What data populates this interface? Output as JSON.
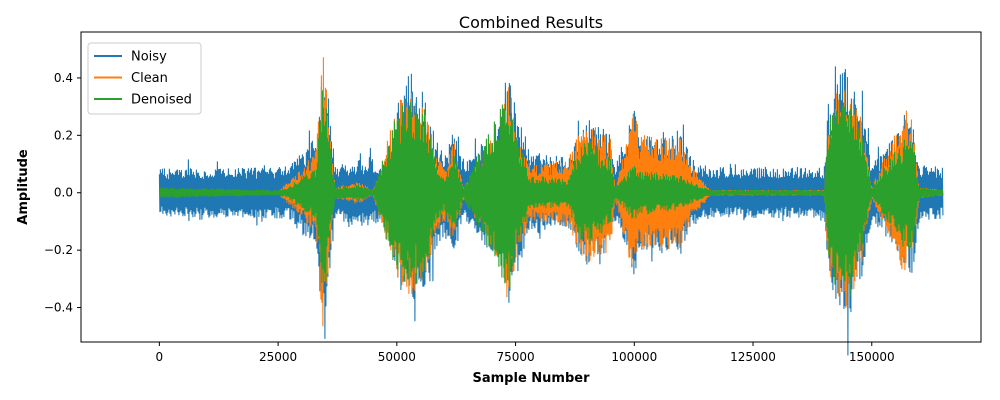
{
  "chart_data": {
    "type": "line",
    "title": "Combined Results",
    "xlabel": "Sample Number",
    "ylabel": "Amplitude",
    "xlim": [
      -16500,
      173000
    ],
    "ylim": [
      -0.52,
      0.56
    ],
    "x_ticks": [
      0,
      25000,
      50000,
      75000,
      100000,
      125000,
      150000
    ],
    "x_tick_labels": [
      "0",
      "25000",
      "50000",
      "75000",
      "100000",
      "125000",
      "150000"
    ],
    "y_ticks": [
      -0.4,
      -0.2,
      0.0,
      0.2,
      0.4
    ],
    "y_tick_labels": [
      "−0.4",
      "−0.2",
      "0.0",
      "0.2",
      "0.4"
    ],
    "x_range": [
      0,
      165000
    ],
    "grid": false,
    "legend_position": "upper-left",
    "series": [
      {
        "name": "Noisy",
        "color": "#1f77b4",
        "noise_floor": 0.085,
        "envelope": [
          [
            0,
            0.085
          ],
          [
            27000,
            0.09
          ],
          [
            33000,
            0.2
          ],
          [
            34500,
            0.5
          ],
          [
            35500,
            0.35
          ],
          [
            37000,
            0.1
          ],
          [
            44000,
            0.12
          ],
          [
            48000,
            0.09
          ],
          [
            50000,
            0.3
          ],
          [
            52000,
            0.42
          ],
          [
            56000,
            0.35
          ],
          [
            58000,
            0.2
          ],
          [
            60000,
            0.15
          ],
          [
            62000,
            0.22
          ],
          [
            64000,
            0.1
          ],
          [
            72000,
            0.25
          ],
          [
            73500,
            0.45
          ],
          [
            75000,
            0.3
          ],
          [
            78000,
            0.15
          ],
          [
            86000,
            0.12
          ],
          [
            88000,
            0.2
          ],
          [
            90000,
            0.26
          ],
          [
            95000,
            0.22
          ],
          [
            96000,
            0.1
          ],
          [
            100000,
            0.3
          ],
          [
            101000,
            0.2
          ],
          [
            110000,
            0.22
          ],
          [
            112000,
            0.12
          ],
          [
            116000,
            0.09
          ],
          [
            140000,
            0.09
          ],
          [
            141000,
            0.35
          ],
          [
            145000,
            0.45
          ],
          [
            148000,
            0.3
          ],
          [
            150000,
            0.1
          ],
          [
            157000,
            0.25
          ],
          [
            158500,
            0.3
          ],
          [
            160000,
            0.1
          ],
          [
            165000,
            0.09
          ]
        ]
      },
      {
        "name": "Clean",
        "color": "#ff7f0e",
        "envelope": [
          [
            0,
            0.005
          ],
          [
            25000,
            0.005
          ],
          [
            27000,
            0.04
          ],
          [
            33000,
            0.15
          ],
          [
            34500,
            0.5
          ],
          [
            35500,
            0.3
          ],
          [
            37000,
            0.02
          ],
          [
            42000,
            0.04
          ],
          [
            45000,
            0.01
          ],
          [
            50000,
            0.3
          ],
          [
            52000,
            0.38
          ],
          [
            56000,
            0.32
          ],
          [
            58000,
            0.15
          ],
          [
            60000,
            0.1
          ],
          [
            62000,
            0.2
          ],
          [
            64000,
            0.02
          ],
          [
            72000,
            0.25
          ],
          [
            73500,
            0.4
          ],
          [
            75000,
            0.25
          ],
          [
            78000,
            0.1
          ],
          [
            86000,
            0.12
          ],
          [
            88000,
            0.2
          ],
          [
            90000,
            0.25
          ],
          [
            95000,
            0.2
          ],
          [
            96000,
            0.02
          ],
          [
            100000,
            0.32
          ],
          [
            101000,
            0.2
          ],
          [
            110000,
            0.2
          ],
          [
            112000,
            0.1
          ],
          [
            116000,
            0.01
          ],
          [
            140000,
            0.01
          ],
          [
            141000,
            0.3
          ],
          [
            145000,
            0.42
          ],
          [
            148000,
            0.25
          ],
          [
            150000,
            0.02
          ],
          [
            157000,
            0.3
          ],
          [
            158500,
            0.25
          ],
          [
            160000,
            0.02
          ],
          [
            165000,
            0.01
          ]
        ]
      },
      {
        "name": "Denoised",
        "color": "#2ca02c",
        "envelope": [
          [
            0,
            0.02
          ],
          [
            25000,
            0.01
          ],
          [
            27000,
            0.02
          ],
          [
            33000,
            0.1
          ],
          [
            34500,
            0.4
          ],
          [
            35500,
            0.25
          ],
          [
            37000,
            0.02
          ],
          [
            42000,
            0.03
          ],
          [
            45000,
            0.01
          ],
          [
            50000,
            0.28
          ],
          [
            52000,
            0.35
          ],
          [
            56000,
            0.3
          ],
          [
            58000,
            0.12
          ],
          [
            60000,
            0.06
          ],
          [
            62000,
            0.15
          ],
          [
            64000,
            0.02
          ],
          [
            72000,
            0.3
          ],
          [
            73500,
            0.38
          ],
          [
            75000,
            0.22
          ],
          [
            78000,
            0.06
          ],
          [
            86000,
            0.05
          ],
          [
            88000,
            0.15
          ],
          [
            90000,
            0.2
          ],
          [
            95000,
            0.12
          ],
          [
            96000,
            0.02
          ],
          [
            100000,
            0.1
          ],
          [
            101000,
            0.08
          ],
          [
            110000,
            0.06
          ],
          [
            112000,
            0.04
          ],
          [
            116000,
            0.01
          ],
          [
            140000,
            0.01
          ],
          [
            141000,
            0.3
          ],
          [
            145000,
            0.4
          ],
          [
            148000,
            0.2
          ],
          [
            150000,
            0.02
          ],
          [
            157000,
            0.2
          ],
          [
            158500,
            0.2
          ],
          [
            160000,
            0.02
          ],
          [
            165000,
            0.01
          ]
        ]
      }
    ]
  }
}
